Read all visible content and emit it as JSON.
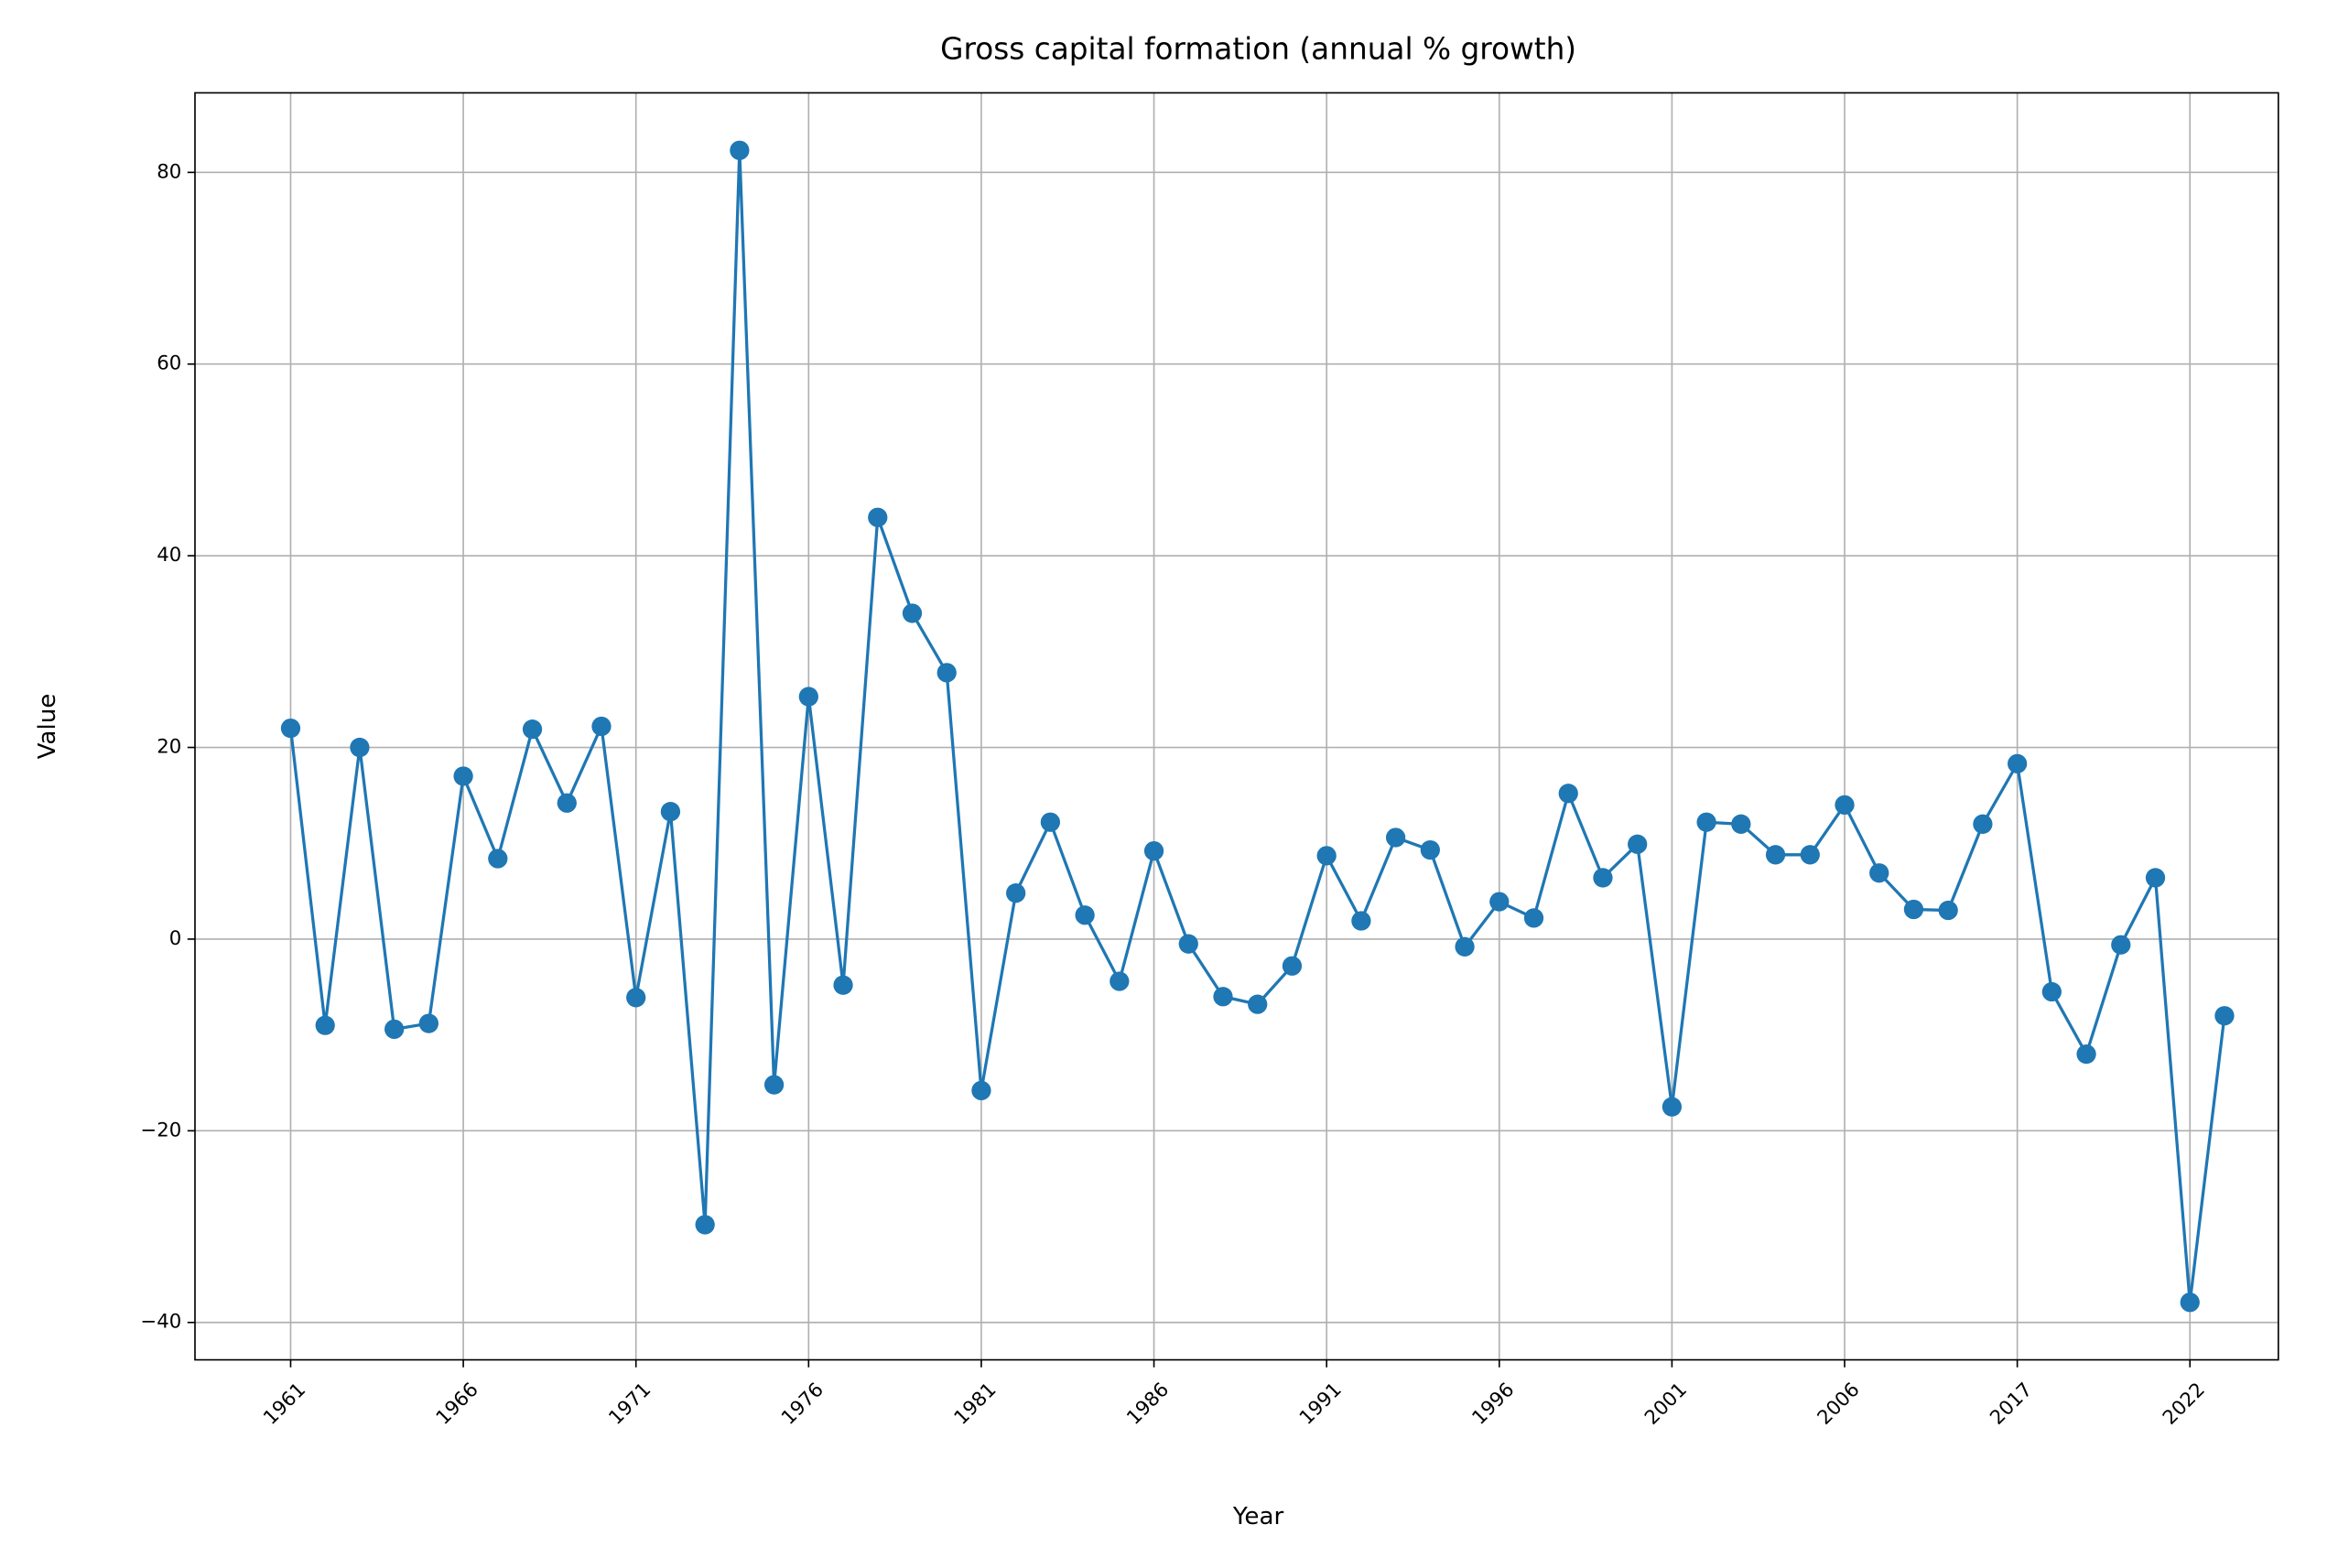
{
  "chart_data": {
    "type": "line",
    "title": "Gross capital formation (annual % growth)",
    "x_label": "Year",
    "y_label": "Value",
    "categories": [
      "1961",
      null,
      null,
      null,
      null,
      "1966",
      null,
      null,
      null,
      null,
      "1971",
      null,
      null,
      null,
      null,
      "1976",
      null,
      null,
      null,
      null,
      "1981",
      null,
      null,
      null,
      null,
      "1986",
      null,
      null,
      null,
      null,
      "1991",
      null,
      null,
      null,
      null,
      "1996",
      null,
      null,
      null,
      null,
      "2001",
      null,
      null,
      null,
      null,
      "2006",
      null,
      null,
      null,
      null,
      "2017",
      null,
      null,
      null,
      null,
      "2022",
      null
    ],
    "values": [
      22,
      -9,
      20,
      -9.4,
      -8.8,
      17,
      8.4,
      21.9,
      14.2,
      22.2,
      -6.1,
      13.3,
      -29.8,
      82.3,
      -15.2,
      25.3,
      -4.8,
      44,
      34,
      27.8,
      -15.8,
      4.8,
      12.2,
      2.5,
      -4.4,
      9.2,
      -0.5,
      -6,
      -6.8,
      -2.8,
      8.7,
      1.9,
      10.6,
      9.3,
      -0.8,
      3.9,
      2.2,
      15.2,
      6.4,
      9.9,
      -17.5,
      12.2,
      12,
      8.8,
      8.8,
      14,
      6.9,
      3.1,
      3,
      12,
      18.3,
      -5.5,
      -12,
      -0.6,
      6.4,
      -37.9,
      -8
    ],
    "color": "#1f77b4",
    "ylim": [
      -43.9,
      88.3
    ],
    "yticks": [
      {
        "value": -40,
        "label": "−40"
      },
      {
        "value": -20,
        "label": "−20"
      },
      0,
      20,
      40,
      60,
      80
    ],
    "grid": true
  }
}
